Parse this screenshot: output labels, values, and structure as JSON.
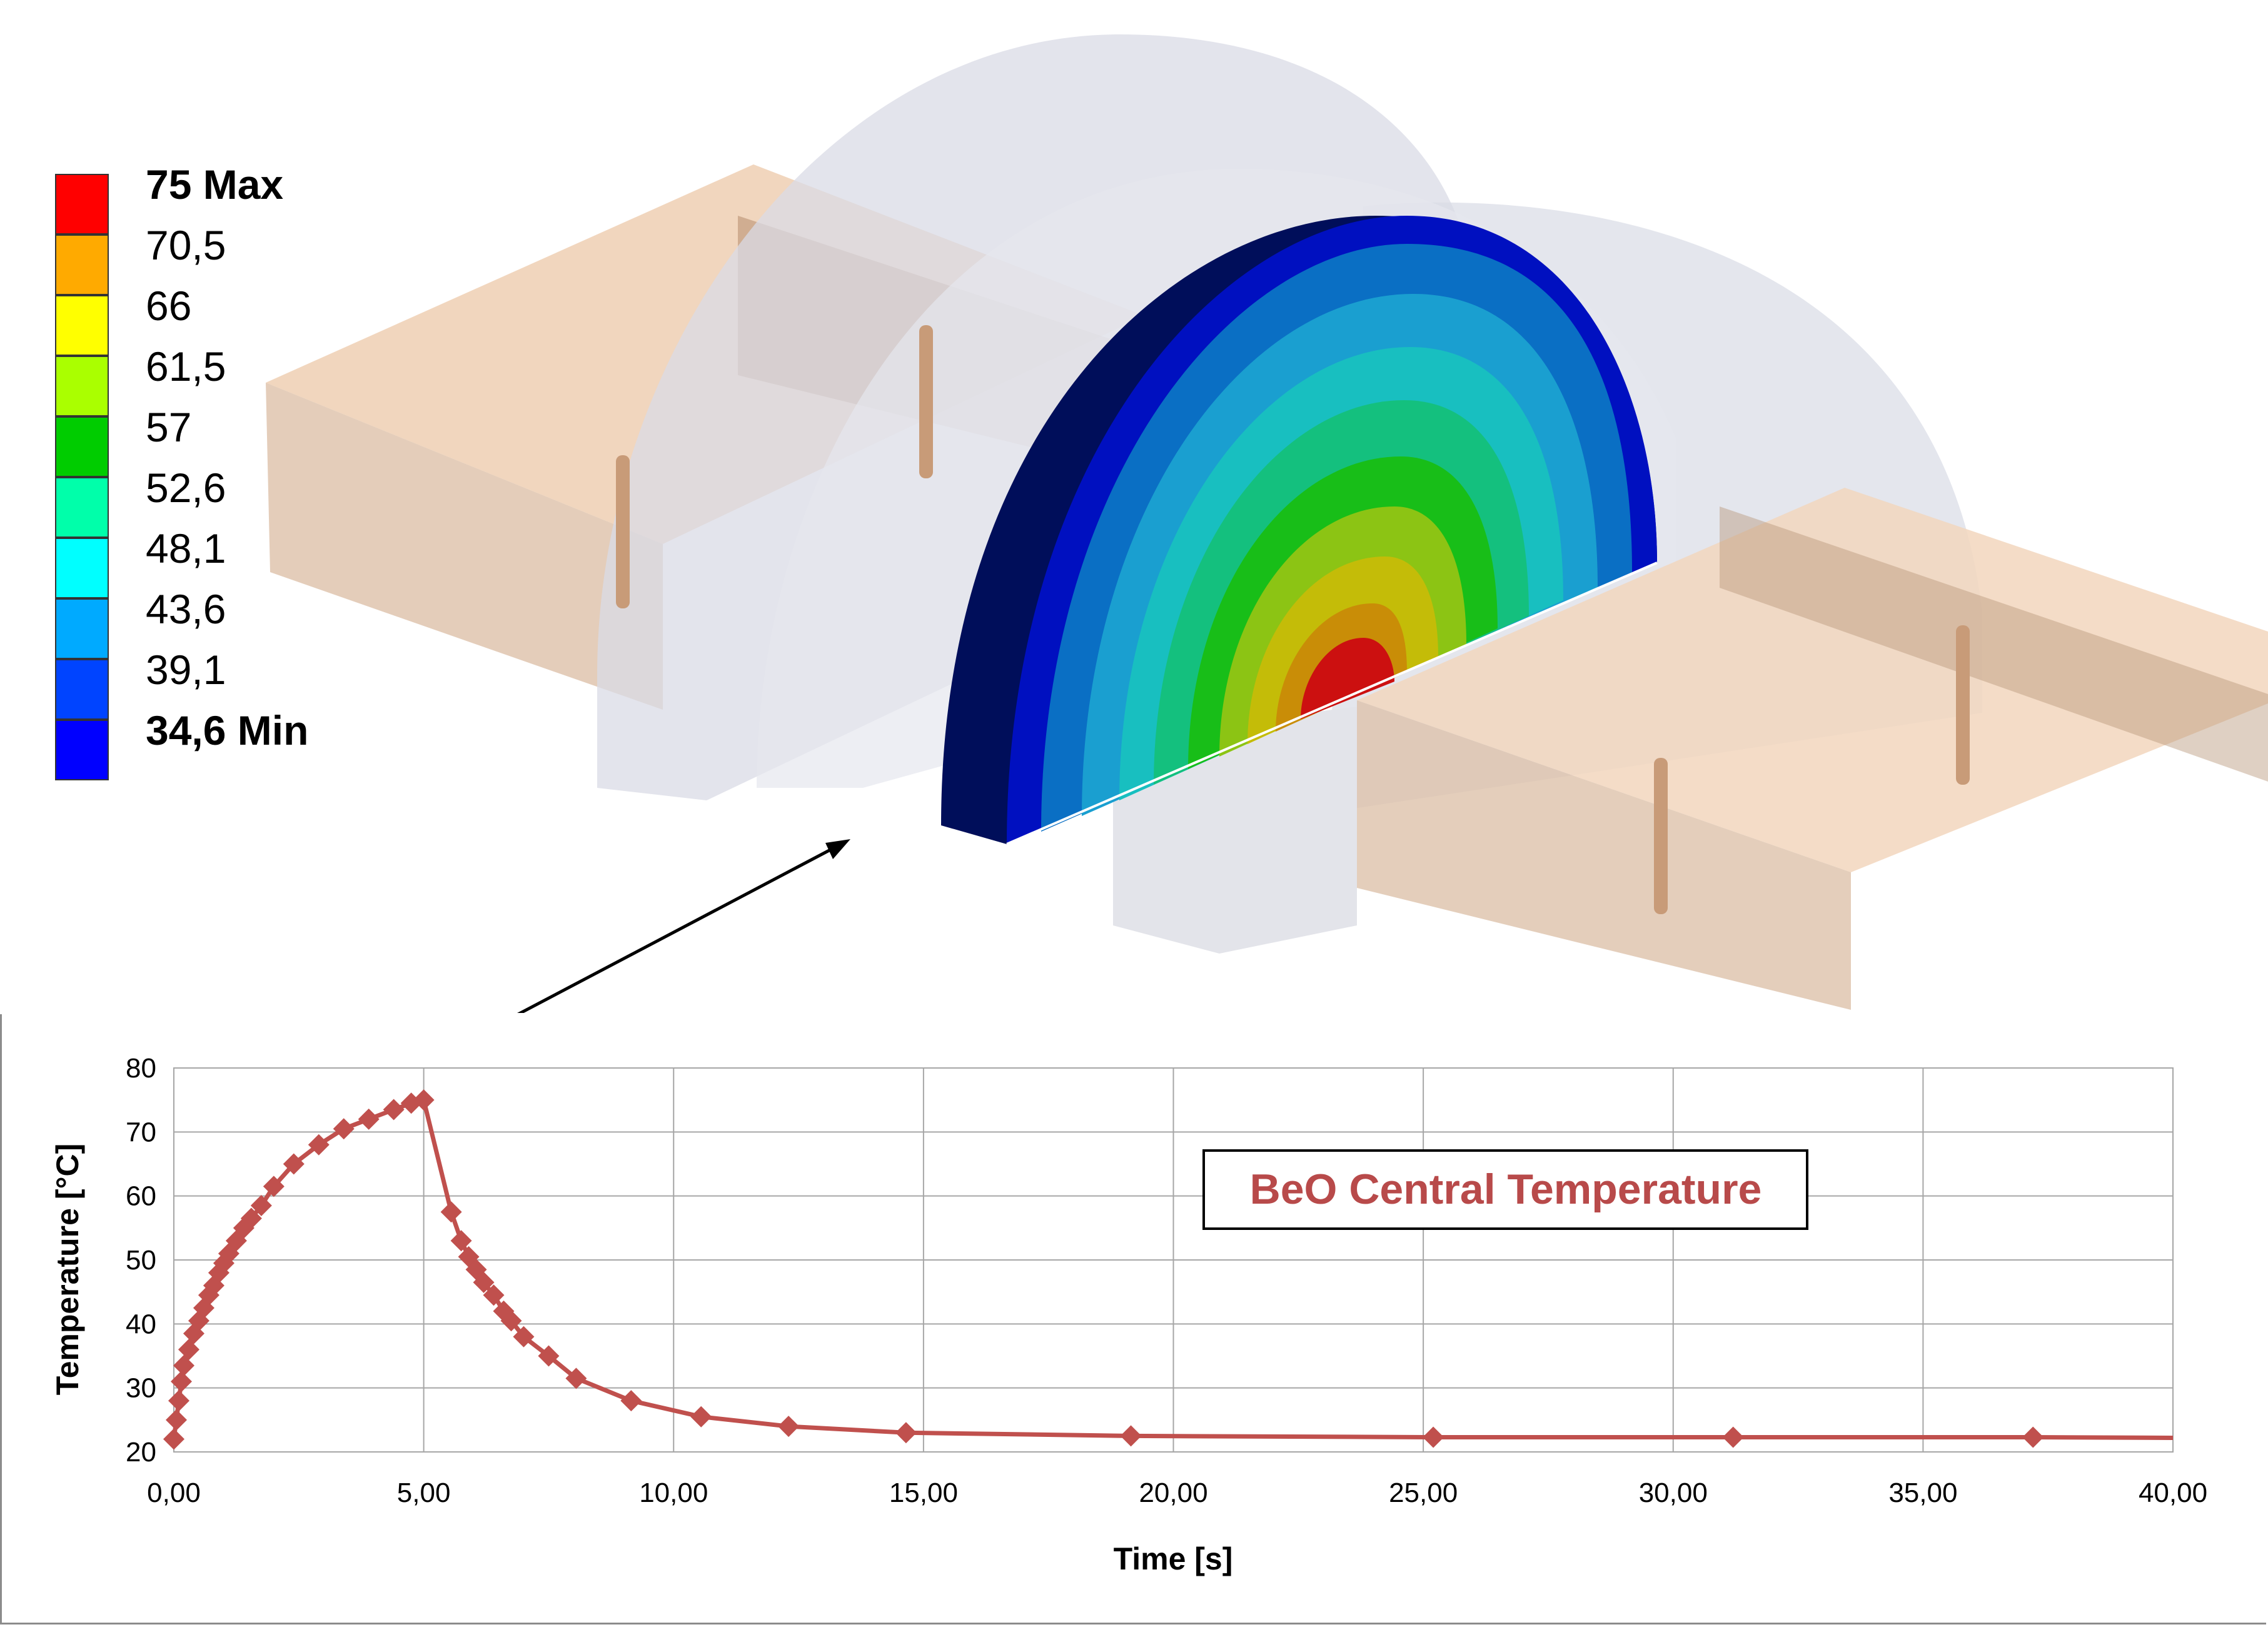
{
  "legend": {
    "entries": [
      {
        "label": "75 Max",
        "color": "#ff0000",
        "bold": true
      },
      {
        "label": "70,5",
        "color": "#ffaa00",
        "bold": false
      },
      {
        "label": "66",
        "color": "#ffff00",
        "bold": false
      },
      {
        "label": "61,5",
        "color": "#aaff00",
        "bold": false
      },
      {
        "label": "57",
        "color": "#00cc00",
        "bold": false
      },
      {
        "label": "52,6",
        "color": "#00ffaa",
        "bold": false
      },
      {
        "label": "48,1",
        "color": "#00ffff",
        "bold": false
      },
      {
        "label": "43,6",
        "color": "#00aaff",
        "bold": false
      },
      {
        "label": "39,1",
        "color": "#0044ff",
        "bold": false
      },
      {
        "label": "34,6 Min",
        "color": "#0000ff",
        "bold": true
      }
    ]
  },
  "chart_data": {
    "type": "line",
    "title": "BeO Central Temperature",
    "xlabel": "Time [s]",
    "ylabel": "Temperature [°C]",
    "xlim": [
      0,
      40
    ],
    "ylim": [
      20,
      80
    ],
    "xticks": [
      "0,00",
      "5,00",
      "10,00",
      "15,00",
      "20,00",
      "25,00",
      "30,00",
      "35,00",
      "40,00"
    ],
    "yticks": [
      "20",
      "30",
      "40",
      "50",
      "60",
      "70",
      "80"
    ],
    "grid": true,
    "series": [
      {
        "color": "#c0504d",
        "points": [
          [
            0.0,
            22.0
          ],
          [
            0.05,
            25.0
          ],
          [
            0.1,
            28.0
          ],
          [
            0.15,
            31.0
          ],
          [
            0.2,
            33.5
          ],
          [
            0.3,
            36.0
          ],
          [
            0.4,
            38.5
          ],
          [
            0.5,
            40.5
          ],
          [
            0.6,
            42.5
          ],
          [
            0.7,
            44.5
          ],
          [
            0.8,
            46.0
          ],
          [
            0.9,
            48.0
          ],
          [
            1.0,
            49.5
          ],
          [
            1.1,
            51.0
          ],
          [
            1.25,
            53.0
          ],
          [
            1.4,
            55.0
          ],
          [
            1.55,
            56.5
          ],
          [
            1.75,
            58.5
          ],
          [
            2.0,
            61.5
          ],
          [
            2.4,
            65.0
          ],
          [
            2.9,
            68.0
          ],
          [
            3.4,
            70.5
          ],
          [
            3.9,
            72.0
          ],
          [
            4.4,
            73.5
          ],
          [
            4.75,
            74.5
          ],
          [
            5.0,
            75.0
          ],
          [
            5.55,
            57.5
          ],
          [
            5.75,
            53.0
          ],
          [
            5.9,
            50.5
          ],
          [
            6.05,
            48.5
          ],
          [
            6.2,
            46.5
          ],
          [
            6.4,
            44.5
          ],
          [
            6.6,
            42.0
          ],
          [
            6.75,
            40.5
          ],
          [
            7.0,
            38.0
          ],
          [
            7.5,
            35.0
          ],
          [
            8.05,
            31.5
          ],
          [
            9.15,
            28.0
          ],
          [
            10.55,
            25.5
          ],
          [
            12.3,
            24.0
          ],
          [
            14.65,
            23.0
          ],
          [
            19.15,
            22.5
          ],
          [
            25.2,
            22.3
          ],
          [
            31.2,
            22.3
          ],
          [
            37.2,
            22.3
          ],
          [
            40.0,
            22.2
          ]
        ]
      }
    ]
  }
}
